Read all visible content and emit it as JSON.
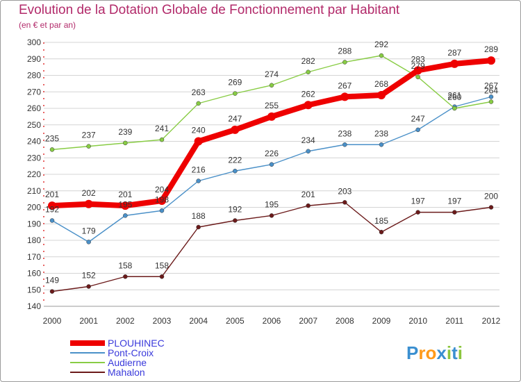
{
  "header": {
    "title": "Evolution de la Dotation Globale de Fonctionnement par Habitant",
    "subtitle": "(en € et par an)"
  },
  "legend": {
    "items": [
      {
        "label": "PLOUHINEC"
      },
      {
        "label": "Pont-Croix"
      },
      {
        "label": "Audierne"
      },
      {
        "label": "Mahalon"
      }
    ]
  },
  "logo": {
    "text": "Proxiti"
  },
  "chart_data": {
    "type": "line",
    "title": "Evolution de la Dotation Globale de Fonctionnement par Habitant",
    "subtitle": "(en € et par an)",
    "xlabel": "",
    "ylabel": "",
    "categories": [
      "2000",
      "2001",
      "2002",
      "2003",
      "2004",
      "2005",
      "2006",
      "2007",
      "2008",
      "2009",
      "2010",
      "2011",
      "2012"
    ],
    "ylim": [
      140,
      300
    ],
    "yticks": [
      140,
      150,
      160,
      170,
      180,
      190,
      200,
      210,
      220,
      230,
      240,
      250,
      260,
      270,
      280,
      290,
      300
    ],
    "grid": "horizontal",
    "legend_position": "bottom-left",
    "series": [
      {
        "name": "PLOUHINEC",
        "color": "#ee0000",
        "values": [
          201,
          202,
          201,
          204,
          240,
          247,
          255,
          262,
          267,
          268,
          283,
          287,
          289
        ]
      },
      {
        "name": "Pont-Croix",
        "color": "#4a90c8",
        "values": [
          192,
          179,
          195,
          198,
          216,
          222,
          226,
          234,
          238,
          238,
          247,
          261,
          267
        ]
      },
      {
        "name": "Audierne",
        "color": "#88cc44",
        "values": [
          235,
          237,
          239,
          241,
          263,
          269,
          274,
          282,
          288,
          292,
          279,
          260,
          264
        ]
      },
      {
        "name": "Mahalon",
        "color": "#6b1a1a",
        "values": [
          149,
          152,
          158,
          158,
          188,
          192,
          195,
          201,
          203,
          185,
          197,
          197,
          200
        ]
      }
    ]
  }
}
